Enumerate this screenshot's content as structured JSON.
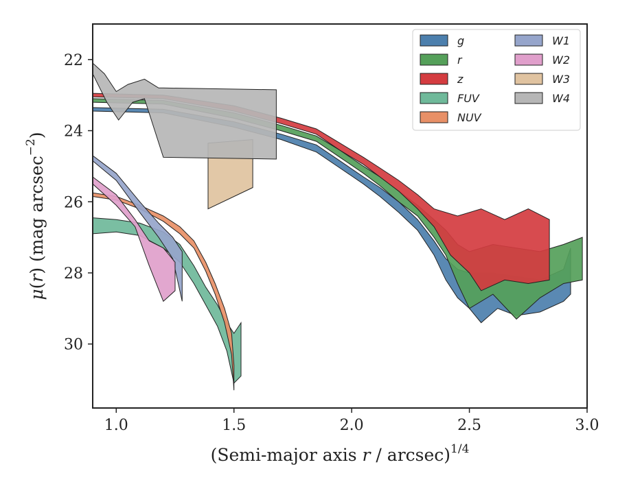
{
  "chart_data": {
    "type": "area",
    "xlabel": "(Semi-major axis r / arcsec)",
    "xlabel_var": "r",
    "xlabel_power": "1/4",
    "ylabel": "μ(r) (mag arcsec",
    "ylabel_power": "−2",
    "ylabel_tail": ")",
    "xlim": [
      0.9,
      3.0
    ],
    "ylim": [
      31.8,
      21.0
    ],
    "y_inverted": true,
    "xticks": [
      1.0,
      1.5,
      2.0,
      2.5,
      3.0
    ],
    "xtick_labels": [
      "1.0",
      "1.5",
      "2.0",
      "2.5",
      "3.0"
    ],
    "yticks": [
      22,
      24,
      26,
      28,
      30
    ],
    "ytick_labels": [
      "22",
      "24",
      "26",
      "28",
      "30"
    ],
    "grid": false,
    "legend_position": "top-right",
    "legend_columns": 2,
    "series": [
      {
        "name": "g",
        "color": "#4c7fad",
        "upper": [
          [
            0.9,
            23.35
          ],
          [
            1.2,
            23.4
          ],
          [
            1.5,
            23.75
          ],
          [
            1.7,
            24.1
          ],
          [
            1.85,
            24.4
          ],
          [
            1.95,
            24.85
          ],
          [
            2.05,
            25.3
          ],
          [
            2.12,
            25.6
          ],
          [
            2.2,
            26.0
          ],
          [
            2.28,
            26.5
          ],
          [
            2.35,
            27.1
          ],
          [
            2.4,
            27.6
          ],
          [
            2.45,
            27.9
          ],
          [
            2.5,
            28.0
          ],
          [
            2.6,
            28.0
          ],
          [
            2.7,
            28.1
          ],
          [
            2.8,
            28.2
          ],
          [
            2.9,
            27.9
          ],
          [
            2.93,
            27.3
          ]
        ],
        "lower": [
          [
            0.9,
            23.45
          ],
          [
            1.2,
            23.5
          ],
          [
            1.5,
            23.9
          ],
          [
            1.7,
            24.25
          ],
          [
            1.85,
            24.6
          ],
          [
            1.95,
            25.05
          ],
          [
            2.05,
            25.5
          ],
          [
            2.12,
            25.85
          ],
          [
            2.2,
            26.3
          ],
          [
            2.28,
            26.8
          ],
          [
            2.35,
            27.5
          ],
          [
            2.4,
            28.2
          ],
          [
            2.45,
            28.7
          ],
          [
            2.5,
            29.0
          ],
          [
            2.55,
            29.4
          ],
          [
            2.62,
            29.0
          ],
          [
            2.7,
            29.2
          ],
          [
            2.8,
            29.1
          ],
          [
            2.9,
            28.8
          ],
          [
            2.93,
            28.6
          ]
        ]
      },
      {
        "name": "r",
        "color": "#55a05a",
        "upper": [
          [
            0.9,
            23.1
          ],
          [
            1.2,
            23.15
          ],
          [
            1.5,
            23.5
          ],
          [
            1.7,
            23.85
          ],
          [
            1.85,
            24.15
          ],
          [
            1.95,
            24.55
          ],
          [
            2.05,
            25.0
          ],
          [
            2.12,
            25.3
          ],
          [
            2.2,
            25.7
          ],
          [
            2.28,
            26.1
          ],
          [
            2.35,
            26.5
          ],
          [
            2.4,
            26.8
          ],
          [
            2.45,
            27.2
          ],
          [
            2.5,
            27.4
          ],
          [
            2.6,
            27.2
          ],
          [
            2.7,
            27.3
          ],
          [
            2.8,
            27.4
          ],
          [
            2.9,
            27.2
          ],
          [
            2.98,
            27.0
          ]
        ],
        "lower": [
          [
            0.9,
            23.2
          ],
          [
            1.2,
            23.25
          ],
          [
            1.5,
            23.65
          ],
          [
            1.7,
            24.0
          ],
          [
            1.85,
            24.3
          ],
          [
            1.95,
            24.75
          ],
          [
            2.05,
            25.2
          ],
          [
            2.12,
            25.55
          ],
          [
            2.2,
            26.0
          ],
          [
            2.28,
            26.4
          ],
          [
            2.35,
            27.0
          ],
          [
            2.4,
            27.5
          ],
          [
            2.45,
            28.3
          ],
          [
            2.5,
            29.0
          ],
          [
            2.6,
            28.6
          ],
          [
            2.7,
            29.3
          ],
          [
            2.8,
            28.7
          ],
          [
            2.9,
            28.3
          ],
          [
            2.98,
            28.2
          ]
        ]
      },
      {
        "name": "z",
        "color": "#d43c40",
        "upper": [
          [
            0.9,
            22.95
          ],
          [
            1.2,
            23.0
          ],
          [
            1.5,
            23.3
          ],
          [
            1.7,
            23.65
          ],
          [
            1.85,
            23.95
          ],
          [
            1.95,
            24.35
          ],
          [
            2.05,
            24.75
          ],
          [
            2.12,
            25.05
          ],
          [
            2.2,
            25.4
          ],
          [
            2.28,
            25.8
          ],
          [
            2.35,
            26.2
          ],
          [
            2.45,
            26.4
          ],
          [
            2.55,
            26.2
          ],
          [
            2.65,
            26.5
          ],
          [
            2.75,
            26.2
          ],
          [
            2.84,
            26.5
          ]
        ],
        "lower": [
          [
            0.9,
            23.05
          ],
          [
            1.2,
            23.1
          ],
          [
            1.5,
            23.45
          ],
          [
            1.7,
            23.8
          ],
          [
            1.85,
            24.1
          ],
          [
            1.95,
            24.55
          ],
          [
            2.05,
            24.95
          ],
          [
            2.12,
            25.3
          ],
          [
            2.2,
            25.7
          ],
          [
            2.28,
            26.2
          ],
          [
            2.35,
            26.7
          ],
          [
            2.42,
            27.5
          ],
          [
            2.5,
            28.0
          ],
          [
            2.55,
            28.5
          ],
          [
            2.65,
            28.2
          ],
          [
            2.75,
            28.3
          ],
          [
            2.84,
            28.2
          ]
        ]
      },
      {
        "name": "FUV",
        "color": "#6fb99a",
        "upper": [
          [
            0.9,
            26.45
          ],
          [
            1.0,
            26.5
          ],
          [
            1.1,
            26.6
          ],
          [
            1.2,
            26.85
          ],
          [
            1.27,
            27.2
          ],
          [
            1.33,
            27.8
          ],
          [
            1.38,
            28.4
          ],
          [
            1.43,
            28.9
          ],
          [
            1.47,
            29.4
          ],
          [
            1.5,
            29.7
          ],
          [
            1.53,
            29.4
          ]
        ],
        "lower": [
          [
            0.9,
            26.9
          ],
          [
            1.0,
            26.85
          ],
          [
            1.1,
            26.95
          ],
          [
            1.2,
            27.3
          ],
          [
            1.27,
            27.7
          ],
          [
            1.33,
            28.3
          ],
          [
            1.38,
            28.9
          ],
          [
            1.43,
            29.5
          ],
          [
            1.47,
            30.2
          ],
          [
            1.5,
            31.1
          ],
          [
            1.53,
            30.9
          ]
        ]
      },
      {
        "name": "NUV",
        "color": "#e89067",
        "upper": [
          [
            0.9,
            25.75
          ],
          [
            1.0,
            25.85
          ],
          [
            1.1,
            26.1
          ],
          [
            1.2,
            26.4
          ],
          [
            1.27,
            26.7
          ],
          [
            1.33,
            27.1
          ],
          [
            1.38,
            27.7
          ],
          [
            1.42,
            28.3
          ],
          [
            1.46,
            29.0
          ],
          [
            1.49,
            29.7
          ],
          [
            1.5,
            30.6
          ]
        ],
        "lower": [
          [
            0.9,
            25.85
          ],
          [
            1.0,
            25.95
          ],
          [
            1.1,
            26.2
          ],
          [
            1.2,
            26.55
          ],
          [
            1.27,
            26.9
          ],
          [
            1.33,
            27.3
          ],
          [
            1.38,
            27.95
          ],
          [
            1.42,
            28.6
          ],
          [
            1.46,
            29.4
          ],
          [
            1.49,
            30.3
          ],
          [
            1.5,
            31.3
          ]
        ]
      },
      {
        "name": "W1",
        "color": "#96a5cb",
        "upper": [
          [
            0.9,
            24.7
          ],
          [
            1.0,
            25.2
          ],
          [
            1.1,
            26.0
          ],
          [
            1.18,
            26.6
          ],
          [
            1.24,
            27.0
          ],
          [
            1.28,
            27.4
          ]
        ],
        "lower": [
          [
            0.9,
            24.85
          ],
          [
            1.0,
            25.4
          ],
          [
            1.1,
            26.3
          ],
          [
            1.18,
            27.0
          ],
          [
            1.24,
            27.6
          ],
          [
            1.28,
            28.8
          ]
        ]
      },
      {
        "name": "W2",
        "color": "#e09fcb",
        "upper": [
          [
            0.9,
            25.3
          ],
          [
            1.0,
            25.8
          ],
          [
            1.08,
            26.5
          ],
          [
            1.14,
            27.1
          ],
          [
            1.2,
            27.3
          ],
          [
            1.25,
            27.7
          ]
        ],
        "lower": [
          [
            0.9,
            25.5
          ],
          [
            1.0,
            26.1
          ],
          [
            1.08,
            26.7
          ],
          [
            1.14,
            27.8
          ],
          [
            1.2,
            28.8
          ],
          [
            1.25,
            28.5
          ]
        ]
      },
      {
        "name": "W3",
        "color": "#e0c3a0",
        "upper": [
          [
            1.39,
            24.35
          ],
          [
            1.58,
            24.25
          ]
        ],
        "lower": [
          [
            1.39,
            26.2
          ],
          [
            1.58,
            25.6
          ]
        ]
      },
      {
        "name": "W4",
        "color": "#b6b6b6",
        "upper": [
          [
            0.9,
            22.1
          ],
          [
            0.95,
            22.4
          ],
          [
            1.0,
            22.9
          ],
          [
            1.05,
            22.7
          ],
          [
            1.12,
            22.55
          ],
          [
            1.18,
            22.8
          ],
          [
            1.2,
            22.8
          ],
          [
            1.68,
            22.85
          ]
        ],
        "lower": [
          [
            0.9,
            22.4
          ],
          [
            0.96,
            23.2
          ],
          [
            1.01,
            23.7
          ],
          [
            1.07,
            23.2
          ],
          [
            1.12,
            23.1
          ],
          [
            1.2,
            24.75
          ],
          [
            1.68,
            24.8
          ]
        ]
      }
    ]
  }
}
